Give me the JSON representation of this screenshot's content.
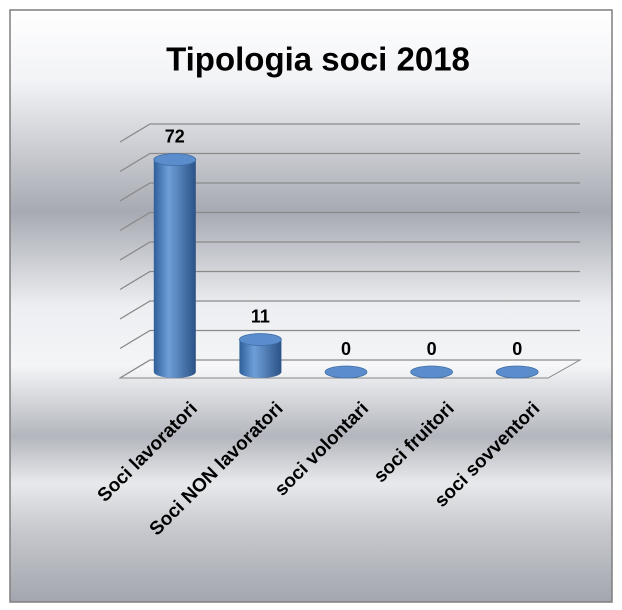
{
  "chart_data": {
    "type": "bar3d",
    "title": "Tipologia soci 2018",
    "categories": [
      "Soci lavoratori",
      "Soci NON lavoratori",
      "soci volontari",
      "soci fruitori",
      "soci sovventori"
    ],
    "values": [
      72,
      11,
      0,
      0,
      0
    ],
    "color": "#4f81bd",
    "ylim": [
      0,
      80
    ],
    "yticks": [
      0,
      10,
      20,
      30,
      40,
      50,
      60,
      70,
      80
    ],
    "grid": true
  }
}
